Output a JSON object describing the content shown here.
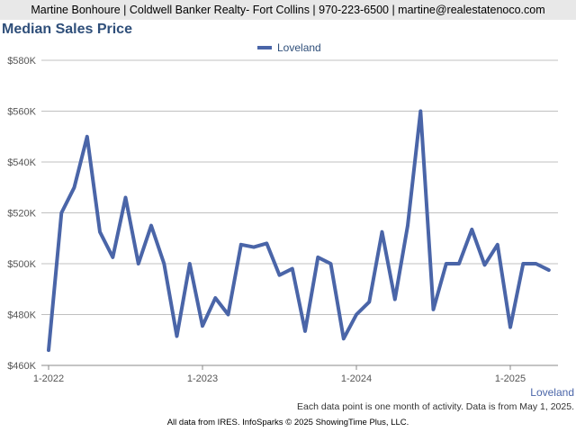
{
  "header": {
    "contact_line": "Martine Bonhoure | Coldwell Banker Realty- Fort Collins | 970-223-6500 | martine@realestatenoco.com"
  },
  "footer": {
    "note": "Each data point is one month of activity. Data is from May 1, 2025.",
    "credit": "All data from IRES. InfoSparks © 2025 ShowingTime Plus, LLC.",
    "corner_label": "Loveland"
  },
  "colors": {
    "series": "#4a65a8",
    "grid": "#c0c0c0",
    "title": "#2f4f7a"
  },
  "chart_data": {
    "type": "line",
    "title": "Median Sales Price",
    "xlabel": "",
    "ylabel": "",
    "legend_position": "top-center",
    "grid": true,
    "ylim": [
      460000,
      580000
    ],
    "yticks": [
      460000,
      480000,
      500000,
      520000,
      540000,
      560000,
      580000
    ],
    "ytick_labels": [
      "$460K",
      "$480K",
      "$500K",
      "$520K",
      "$540K",
      "$560K",
      "$580K"
    ],
    "xtick_labels": [
      "1-2022",
      "1-2023",
      "1-2024",
      "1-2025"
    ],
    "xtick_indices": [
      0,
      12,
      24,
      36
    ],
    "x": [
      "1-2022",
      "2-2022",
      "3-2022",
      "4-2022",
      "5-2022",
      "6-2022",
      "7-2022",
      "8-2022",
      "9-2022",
      "10-2022",
      "11-2022",
      "12-2022",
      "1-2023",
      "2-2023",
      "3-2023",
      "4-2023",
      "5-2023",
      "6-2023",
      "7-2023",
      "8-2023",
      "9-2023",
      "10-2023",
      "11-2023",
      "12-2023",
      "1-2024",
      "2-2024",
      "3-2024",
      "4-2024",
      "5-2024",
      "6-2024",
      "7-2024",
      "8-2024",
      "9-2024",
      "10-2024",
      "11-2024",
      "12-2024",
      "1-2025",
      "2-2025",
      "3-2025",
      "4-2025"
    ],
    "series": [
      {
        "name": "Loveland",
        "values": [
          466000,
          520000,
          530000,
          550000,
          512500,
          502500,
          526000,
          500000,
          515000,
          500000,
          471500,
          500000,
          475500,
          486500,
          480000,
          507500,
          506500,
          508000,
          495500,
          498000,
          473500,
          502500,
          500000,
          470500,
          480000,
          485000,
          512500,
          486000,
          515000,
          560000,
          482000,
          500000,
          500000,
          513500,
          499500,
          507500,
          475000,
          500000,
          500000,
          497500
        ]
      }
    ]
  }
}
